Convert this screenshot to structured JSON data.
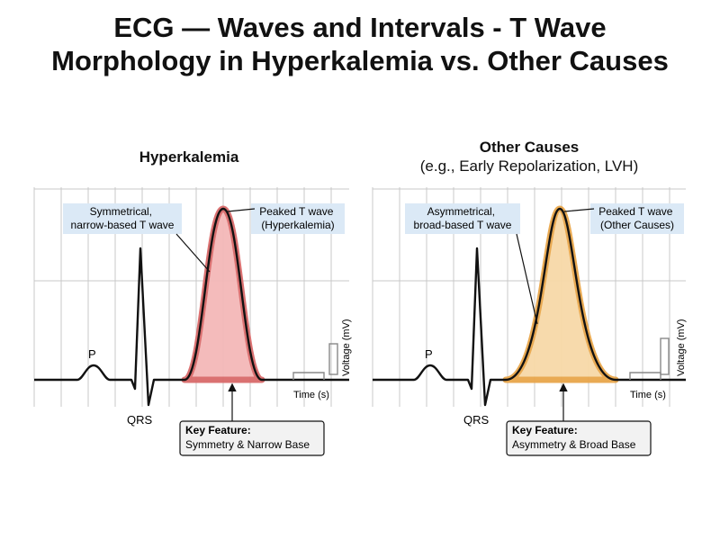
{
  "title": {
    "line1": "ECG — Waves and Intervals - T Wave",
    "line2": "Morphology in Hyperkalemia vs. Other Causes"
  },
  "panels": [
    {
      "heading": "Hyperkalemia",
      "subheading": "",
      "callout_left": [
        "Symmetrical,",
        "narrow-based T wave"
      ],
      "callout_right": [
        "Peaked T wave",
        "(Hyperkalemia)"
      ],
      "p_label": "P",
      "qrs_label": "QRS",
      "voltage_label": "Voltage (mV)",
      "time_label": "Time (s)",
      "key_feature_title": "Key Feature:",
      "key_feature_text": "Symmetry & Narrow Base",
      "t_wave_fill": "#f4b8b8",
      "t_wave_stroke": "#d96a6a"
    },
    {
      "heading": "Other Causes",
      "subheading": "(e.g., Early Repolarization, LVH)",
      "callout_left": [
        "Asymmetrical,",
        "broad-based T wave"
      ],
      "callout_right": [
        "Peaked T wave",
        "(Other Causes)"
      ],
      "p_label": "P",
      "qrs_label": "QRS",
      "voltage_label": "Voltage (mV)",
      "time_label": "Time (s)",
      "key_feature_title": "Key Feature:",
      "key_feature_text": "Asymmetry & Broad Base",
      "t_wave_fill": "#f7d9a8",
      "t_wave_stroke": "#e8a64a"
    }
  ],
  "colors": {
    "callout_bg": "#dbe9f6",
    "grid": "#c8c8c8",
    "trace": "#111111"
  }
}
